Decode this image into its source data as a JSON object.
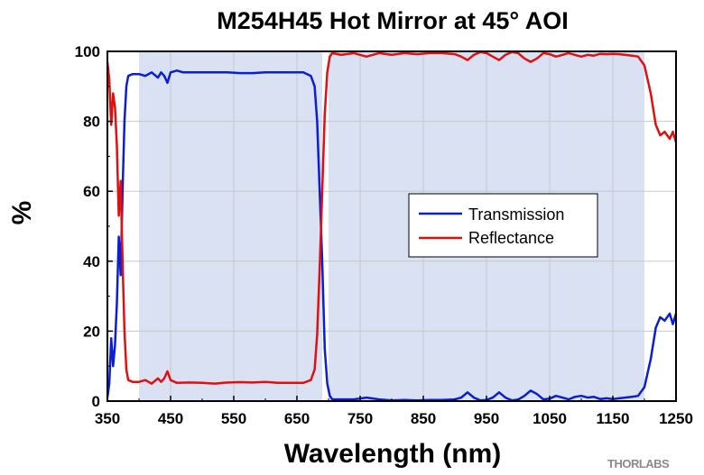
{
  "chart_data": {
    "type": "line",
    "title": "M254H45 Hot Mirror at 45° AOI",
    "xlabel": "Wavelength (nm)",
    "ylabel": "%",
    "xlim": [
      350,
      1250
    ],
    "ylim": [
      0,
      100
    ],
    "x_ticks": [
      350,
      450,
      550,
      650,
      750,
      850,
      950,
      1050,
      1150,
      1250
    ],
    "y_ticks": [
      0,
      20,
      40,
      60,
      80,
      100
    ],
    "grid": true,
    "legend_position": "center-right",
    "shaded_regions": [
      {
        "x": [
          400,
          690
        ],
        "color": "#d9e1f3"
      },
      {
        "x": [
          700,
          1200
        ],
        "color": "#d9e1f3"
      }
    ],
    "series": [
      {
        "name": "Transmission",
        "color": "#0a1ed8",
        "points": [
          [
            350,
            1
          ],
          [
            353,
            5
          ],
          [
            356,
            18
          ],
          [
            359,
            10
          ],
          [
            362,
            16
          ],
          [
            365,
            28
          ],
          [
            368,
            47
          ],
          [
            371,
            36
          ],
          [
            374,
            60
          ],
          [
            377,
            80
          ],
          [
            380,
            90
          ],
          [
            383,
            93
          ],
          [
            390,
            93.5
          ],
          [
            400,
            93.5
          ],
          [
            410,
            93
          ],
          [
            420,
            94
          ],
          [
            430,
            92.5
          ],
          [
            435,
            94
          ],
          [
            440,
            93
          ],
          [
            445,
            91
          ],
          [
            450,
            94
          ],
          [
            460,
            94.5
          ],
          [
            470,
            94
          ],
          [
            480,
            94
          ],
          [
            500,
            94
          ],
          [
            520,
            94
          ],
          [
            540,
            94
          ],
          [
            560,
            93.8
          ],
          [
            580,
            93.8
          ],
          [
            600,
            94
          ],
          [
            620,
            94
          ],
          [
            640,
            94
          ],
          [
            660,
            94
          ],
          [
            672,
            93
          ],
          [
            678,
            90
          ],
          [
            682,
            80
          ],
          [
            686,
            60
          ],
          [
            690,
            40
          ],
          [
            694,
            15
          ],
          [
            698,
            5
          ],
          [
            702,
            1.5
          ],
          [
            706,
            0.5
          ],
          [
            720,
            0.5
          ],
          [
            740,
            0.5
          ],
          [
            760,
            1
          ],
          [
            780,
            0.5
          ],
          [
            800,
            0.2
          ],
          [
            820,
            0.3
          ],
          [
            840,
            0.2
          ],
          [
            860,
            0.3
          ],
          [
            880,
            0.3
          ],
          [
            900,
            0.5
          ],
          [
            910,
            1
          ],
          [
            920,
            2.5
          ],
          [
            930,
            1
          ],
          [
            940,
            0.2
          ],
          [
            950,
            0.3
          ],
          [
            960,
            1
          ],
          [
            970,
            2.5
          ],
          [
            980,
            1
          ],
          [
            990,
            0.2
          ],
          [
            1000,
            0.4
          ],
          [
            1010,
            1.5
          ],
          [
            1020,
            3
          ],
          [
            1030,
            2
          ],
          [
            1040,
            0.5
          ],
          [
            1050,
            0.7
          ],
          [
            1060,
            1.5
          ],
          [
            1070,
            1
          ],
          [
            1080,
            0.5
          ],
          [
            1090,
            1.2
          ],
          [
            1100,
            1.5
          ],
          [
            1110,
            1
          ],
          [
            1120,
            1.2
          ],
          [
            1130,
            0.6
          ],
          [
            1140,
            0.8
          ],
          [
            1150,
            0.6
          ],
          [
            1160,
            0.8
          ],
          [
            1170,
            1
          ],
          [
            1180,
            1.2
          ],
          [
            1190,
            1.5
          ],
          [
            1200,
            4
          ],
          [
            1210,
            12
          ],
          [
            1218,
            21
          ],
          [
            1225,
            24
          ],
          [
            1232,
            23
          ],
          [
            1240,
            25
          ],
          [
            1245,
            22
          ],
          [
            1250,
            25
          ]
        ]
      },
      {
        "name": "Reflectance",
        "color": "#e01010",
        "points": [
          [
            350,
            97
          ],
          [
            353,
            92
          ],
          [
            356,
            79
          ],
          [
            359,
            88
          ],
          [
            362,
            84
          ],
          [
            365,
            73
          ],
          [
            368,
            53
          ],
          [
            371,
            63
          ],
          [
            374,
            40
          ],
          [
            377,
            20
          ],
          [
            380,
            9
          ],
          [
            383,
            6
          ],
          [
            390,
            5.5
          ],
          [
            400,
            5.5
          ],
          [
            410,
            6
          ],
          [
            420,
            5
          ],
          [
            430,
            6.5
          ],
          [
            435,
            5.5
          ],
          [
            440,
            6.5
          ],
          [
            445,
            8.5
          ],
          [
            450,
            6
          ],
          [
            460,
            5.2
          ],
          [
            480,
            5.3
          ],
          [
            500,
            5.2
          ],
          [
            520,
            5
          ],
          [
            540,
            5.3
          ],
          [
            560,
            5.4
          ],
          [
            580,
            5.3
          ],
          [
            600,
            5.5
          ],
          [
            620,
            5.2
          ],
          [
            640,
            5.2
          ],
          [
            660,
            5.2
          ],
          [
            672,
            6
          ],
          [
            678,
            9
          ],
          [
            682,
            19
          ],
          [
            686,
            38
          ],
          [
            690,
            60
          ],
          [
            694,
            82
          ],
          [
            698,
            94
          ],
          [
            702,
            98.5
          ],
          [
            706,
            99.5
          ],
          [
            720,
            99
          ],
          [
            740,
            99.5
          ],
          [
            760,
            98.5
          ],
          [
            780,
            99.5
          ],
          [
            800,
            99
          ],
          [
            820,
            99.5
          ],
          [
            840,
            99.2
          ],
          [
            860,
            99.5
          ],
          [
            880,
            99.5
          ],
          [
            900,
            99.2
          ],
          [
            910,
            98.5
          ],
          [
            920,
            97.5
          ],
          [
            930,
            99
          ],
          [
            940,
            99.8
          ],
          [
            950,
            99.5
          ],
          [
            960,
            98.5
          ],
          [
            970,
            97.5
          ],
          [
            980,
            99
          ],
          [
            990,
            99.8
          ],
          [
            1000,
            99.5
          ],
          [
            1010,
            98
          ],
          [
            1020,
            97
          ],
          [
            1030,
            98
          ],
          [
            1040,
            99.5
          ],
          [
            1050,
            99.2
          ],
          [
            1060,
            98.5
          ],
          [
            1070,
            99
          ],
          [
            1080,
            99.5
          ],
          [
            1090,
            99
          ],
          [
            1100,
            98.5
          ],
          [
            1110,
            99
          ],
          [
            1120,
            98.8
          ],
          [
            1130,
            99.3
          ],
          [
            1140,
            99.2
          ],
          [
            1150,
            99.3
          ],
          [
            1160,
            99.2
          ],
          [
            1170,
            99
          ],
          [
            1180,
            98.8
          ],
          [
            1190,
            98.5
          ],
          [
            1200,
            96
          ],
          [
            1210,
            88
          ],
          [
            1218,
            79
          ],
          [
            1225,
            76
          ],
          [
            1232,
            77
          ],
          [
            1240,
            75
          ],
          [
            1245,
            77
          ],
          [
            1250,
            74
          ]
        ]
      }
    ]
  },
  "logo": {
    "text": "THORLABS"
  }
}
